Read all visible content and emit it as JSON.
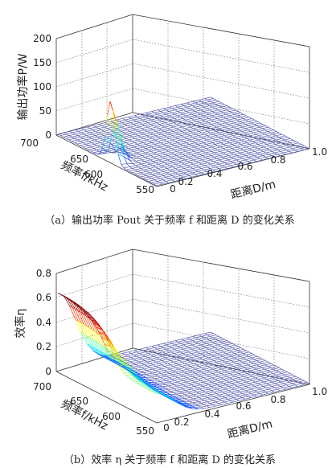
{
  "chart_data": [
    {
      "type": "surface",
      "caption": "（a）输出功率 Pout 关于频率 f 和距离 D 的变化关系",
      "zlabel": "输出功率P/W",
      "ylabel": "频率f/kHz",
      "xlabel": "距离D/m",
      "zlim": [
        0,
        200
      ],
      "ylim": [
        550,
        700
      ],
      "xlim": [
        0,
        1.0
      ],
      "z_ticks": [
        "0",
        "50",
        "100",
        "150",
        "200"
      ],
      "y_ticks": [
        "700",
        "650",
        "600",
        "550"
      ],
      "x_ticks": [
        "0",
        "0.2",
        "0.4",
        "0.6",
        "0.8",
        "1.0"
      ],
      "peak": {
        "f_kHz": 620,
        "D_m": 0.0,
        "value": 125
      },
      "baseline": 2,
      "colormap": "jet",
      "surface_color": "#5a5fb0",
      "grid": true
    },
    {
      "type": "surface",
      "caption": "（b）效率 η 关于频率 f 和距离 D 的变化关系",
      "zlabel": "效率η",
      "ylabel": "频率f/kHz",
      "xlabel": "距离D/m",
      "zlim": [
        0,
        0.8
      ],
      "ylim": [
        550,
        700
      ],
      "xlim": [
        0,
        1.0
      ],
      "z_ticks": [
        "0",
        "0.2",
        "0.4",
        "0.6",
        "0.8"
      ],
      "y_ticks": [
        "700",
        "650",
        "600",
        "550"
      ],
      "x_ticks": [
        "0",
        "0.2",
        "0.4",
        "0.6",
        "0.8",
        "1.0"
      ],
      "peak": {
        "f_kHz": 700,
        "D_m": 0.0,
        "value": 0.62
      },
      "colormap": "jet",
      "surface_color": "#5a5fb0",
      "grid": true
    }
  ]
}
